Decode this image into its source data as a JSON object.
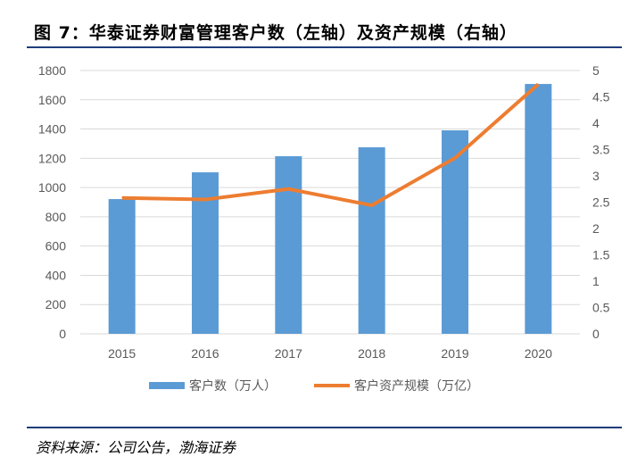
{
  "title": "图 7：华泰证券财富管理客户数（左轴）及资产规模（右轴）",
  "source": "资料来源：公司公告，渤海证券",
  "chart_data": {
    "type": "bar+line",
    "categories": [
      "2015",
      "2016",
      "2017",
      "2018",
      "2019",
      "2020"
    ],
    "series": [
      {
        "name": "客户数（万人）",
        "type": "bar",
        "axis": "left",
        "color": "#5b9bd5",
        "values": [
          921,
          1104,
          1214,
          1275,
          1391,
          1708
        ]
      },
      {
        "name": "客户资产规模（万亿）",
        "type": "line",
        "axis": "right",
        "color": "#ed7d31",
        "values": [
          2.58,
          2.55,
          2.75,
          2.44,
          3.34,
          4.74
        ]
      }
    ],
    "left_axis": {
      "range": [
        0,
        1800
      ],
      "ticks": [
        "0",
        "200",
        "400",
        "600",
        "800",
        "1000",
        "1200",
        "1400",
        "1600",
        "1800"
      ]
    },
    "right_axis": {
      "range": [
        0,
        5
      ],
      "ticks": [
        "0",
        "0.5",
        "1",
        "1.5",
        "2",
        "2.5",
        "3",
        "3.5",
        "4",
        "4.5",
        "5"
      ]
    },
    "grid": true,
    "legend": "bottom"
  }
}
